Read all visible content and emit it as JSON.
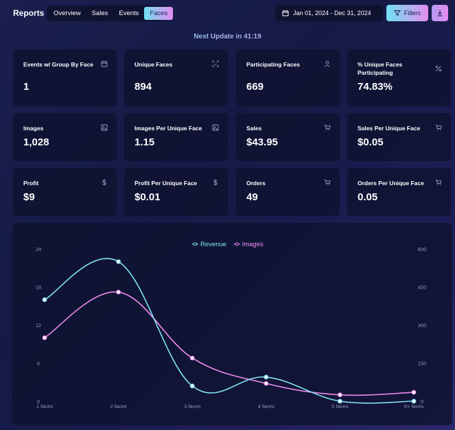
{
  "header": {
    "title": "Reports",
    "tabs": [
      {
        "label": "Overview",
        "active": false
      },
      {
        "label": "Sales",
        "active": false
      },
      {
        "label": "Events",
        "active": false
      },
      {
        "label": "Faces",
        "active": true
      }
    ],
    "date_range": "Jan 01, 2024 - Dec 31, 2024",
    "filters_label": "Filters"
  },
  "next_update": "Next Update in 41:19",
  "cards": [
    {
      "label": "Events w/ Group By Face",
      "value": "1",
      "icon": "calendar-icon"
    },
    {
      "label": "Unique Faces",
      "value": "894",
      "icon": "face-scan-icon"
    },
    {
      "label": "Participating Faces",
      "value": "669",
      "icon": "person-icon"
    },
    {
      "label": "% Unique Faces Participating",
      "value": "74.83%",
      "icon": "percent-icon"
    },
    {
      "label": "Images",
      "value": "1,028",
      "icon": "image-icon"
    },
    {
      "label": "Images Per Unique Face",
      "value": "1.15",
      "icon": "image-icon"
    },
    {
      "label": "Sales",
      "value": "$43.95",
      "icon": "cart-icon"
    },
    {
      "label": "Sales Per Unique Face",
      "value": "$0.05",
      "icon": "cart-icon"
    },
    {
      "label": "Profit",
      "value": "$9",
      "icon": "dollar-icon"
    },
    {
      "label": "Profit Per Unique Face",
      "value": "$0.01",
      "icon": "dollar-icon"
    },
    {
      "label": "Orders",
      "value": "49",
      "icon": "cart-icon"
    },
    {
      "label": "Orders Per Unique Face",
      "value": "0.05",
      "icon": "cart-icon"
    }
  ],
  "colors": {
    "accent_cyan": "#6fe2f2",
    "accent_pink": "#e48cf0",
    "revenue_line": "#7fe3f5",
    "images_line": "#f08cf0"
  },
  "chart_data": {
    "type": "line",
    "categories": [
      "1 faces",
      "2 faces",
      "3 faces",
      "4 faces",
      "5 faces",
      "6+ faces"
    ],
    "series": [
      {
        "name": "Revenue",
        "axis": "left",
        "values": [
          16,
          22,
          2.4,
          3.8,
          0,
          0
        ]
      },
      {
        "name": "Images",
        "axis": "right",
        "values": [
          250,
          430,
          170,
          70,
          25,
          35
        ]
      }
    ],
    "y_left": {
      "min": 0,
      "max": 24,
      "ticks": [
        "0",
        "6",
        "12",
        "18",
        "24"
      ]
    },
    "y_right": {
      "min": 0,
      "max": 600,
      "ticks": [
        "0",
        "150",
        "300",
        "450",
        "600"
      ]
    },
    "legend_position": "top-center",
    "grid": false,
    "smooth": true
  }
}
